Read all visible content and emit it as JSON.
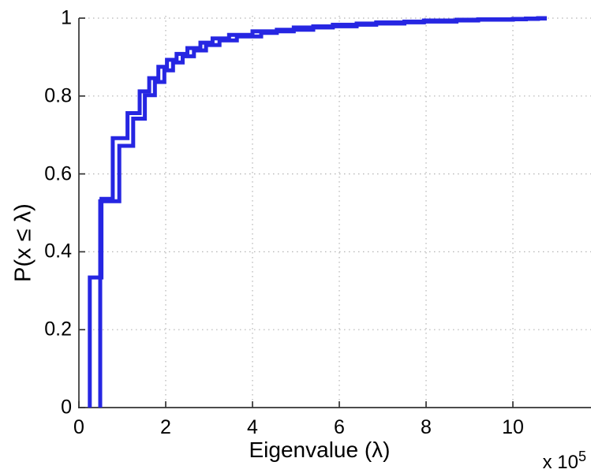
{
  "chart_data": {
    "type": "line",
    "subtype": "ecdf_step",
    "title": "",
    "xlabel": "Eigenvalue (λ)",
    "ylabel": "P(x ≤ λ)",
    "x_axis_multiplier": {
      "base": "x 10",
      "exponent": "5"
    },
    "xlim": [
      0,
      11.8
    ],
    "ylim": [
      0,
      1
    ],
    "xticks": [
      0,
      2,
      4,
      6,
      8,
      10
    ],
    "xtick_labels": [
      "0",
      "2",
      "4",
      "6",
      "8",
      "10"
    ],
    "yticks": [
      0,
      0.2,
      0.4,
      0.6,
      0.8,
      1
    ],
    "ytick_labels": [
      "0",
      "0.2",
      "0.4",
      "0.6",
      "0.8",
      "1"
    ],
    "grid": "dotted",
    "legend_position": "none",
    "x_units_note": "x values in units of 10^5",
    "x_end": 10.78,
    "series": [
      {
        "name": "ecdf-curve-1",
        "steps": [
          [
            0.25,
            0.334
          ],
          [
            0.52,
            0.536
          ],
          [
            0.78,
            0.692
          ],
          [
            1.12,
            0.756
          ],
          [
            1.4,
            0.812
          ],
          [
            1.62,
            0.846
          ],
          [
            1.83,
            0.875
          ],
          [
            2.03,
            0.893
          ],
          [
            2.25,
            0.908
          ],
          [
            2.5,
            0.923
          ],
          [
            2.8,
            0.937
          ],
          [
            3.08,
            0.948
          ],
          [
            3.46,
            0.957
          ],
          [
            4.0,
            0.966
          ],
          [
            4.95,
            0.976
          ],
          [
            5.85,
            0.983
          ],
          [
            6.85,
            0.989
          ],
          [
            7.95,
            0.994
          ],
          [
            9.2,
            0.997
          ],
          [
            10.3,
            0.999
          ]
        ]
      },
      {
        "name": "ecdf-curve-2",
        "steps": [
          [
            0.49,
            0.53
          ],
          [
            0.93,
            0.672
          ],
          [
            1.25,
            0.742
          ],
          [
            1.52,
            0.802
          ],
          [
            1.75,
            0.836
          ],
          [
            1.97,
            0.866
          ],
          [
            2.17,
            0.886
          ],
          [
            2.39,
            0.902
          ],
          [
            2.65,
            0.917
          ],
          [
            2.93,
            0.931
          ],
          [
            3.24,
            0.943
          ],
          [
            3.64,
            0.953
          ],
          [
            4.2,
            0.962
          ],
          [
            4.56,
            0.97
          ],
          [
            5.4,
            0.979
          ],
          [
            6.4,
            0.986
          ],
          [
            7.5,
            0.991
          ],
          [
            8.7,
            0.996
          ],
          [
            10.0,
            0.998
          ],
          [
            10.58,
            1.0
          ]
        ]
      }
    ],
    "colors": {
      "line": "#2626E2",
      "grid": "#b3b3b3",
      "axis": "#333333",
      "text": "#000000",
      "background": "#ffffff"
    }
  }
}
